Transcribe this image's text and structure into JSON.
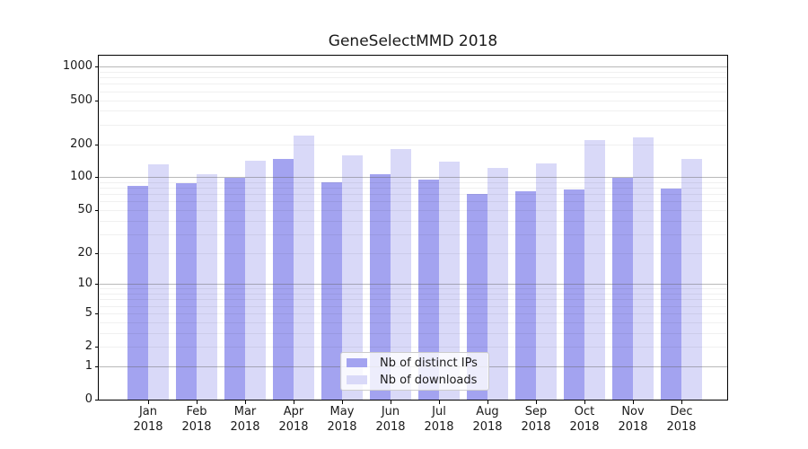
{
  "chart_data": {
    "type": "bar",
    "title": "GeneSelectMMD 2018",
    "categories": [
      "Jan 2018",
      "Feb 2018",
      "Mar 2018",
      "Apr 2018",
      "May 2018",
      "Jun 2018",
      "Jul 2018",
      "Aug 2018",
      "Sep 2018",
      "Oct 2018",
      "Nov 2018",
      "Dec 2018"
    ],
    "series": [
      {
        "name": "Nb of distinct IPs",
        "color": "#a3a3f0",
        "values": [
          83,
          89,
          98,
          146,
          90,
          106,
          96,
          70,
          74,
          78,
          98,
          79
        ]
      },
      {
        "name": "Nb of downloads",
        "color": "#d9d9f8",
        "values": [
          131,
          107,
          142,
          238,
          159,
          180,
          139,
          121,
          134,
          216,
          232,
          148
        ]
      }
    ],
    "yscale": "log1p",
    "ylim": [
      0,
      1260
    ],
    "yticks": [
      1000,
      500,
      200,
      100,
      50,
      20,
      10,
      5,
      2,
      1,
      0
    ],
    "grid": {
      "major_lines": [
        1,
        10,
        100,
        1000
      ],
      "minor_decades": [
        1,
        10,
        100
      ],
      "major_color": "rgba(100,100,100,0.45)",
      "minor_color": "rgba(0,0,0,0.06)"
    },
    "legend_position": "lower-center",
    "xlabel": "",
    "ylabel": ""
  }
}
